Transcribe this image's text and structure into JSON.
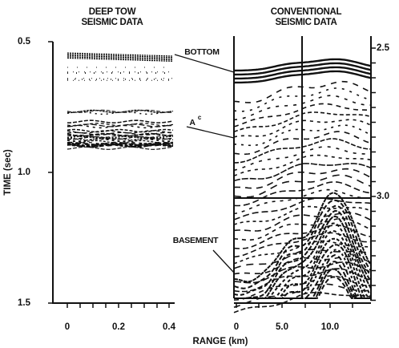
{
  "titles": {
    "left": [
      "DEEP TOW",
      "SEISMIC DATA"
    ],
    "right": [
      "CONVENTIONAL",
      "SEISMIC DATA"
    ]
  },
  "y_axis": {
    "label": "TIME (sec)",
    "ticks": [
      "0.5",
      "1.0",
      "1.5"
    ]
  },
  "right_axis": {
    "ticks": [
      "2.5",
      "3.0"
    ]
  },
  "x_axis": {
    "label": "RANGE (km)",
    "left_ticks": [
      "0",
      "0.2",
      "0.4"
    ],
    "right_ticks": [
      "0",
      "5.0",
      "10.0"
    ]
  },
  "annotations": {
    "bottom": "BOTTOM",
    "a": "A",
    "a_sup": "c",
    "basement": "BASEMENT"
  }
}
